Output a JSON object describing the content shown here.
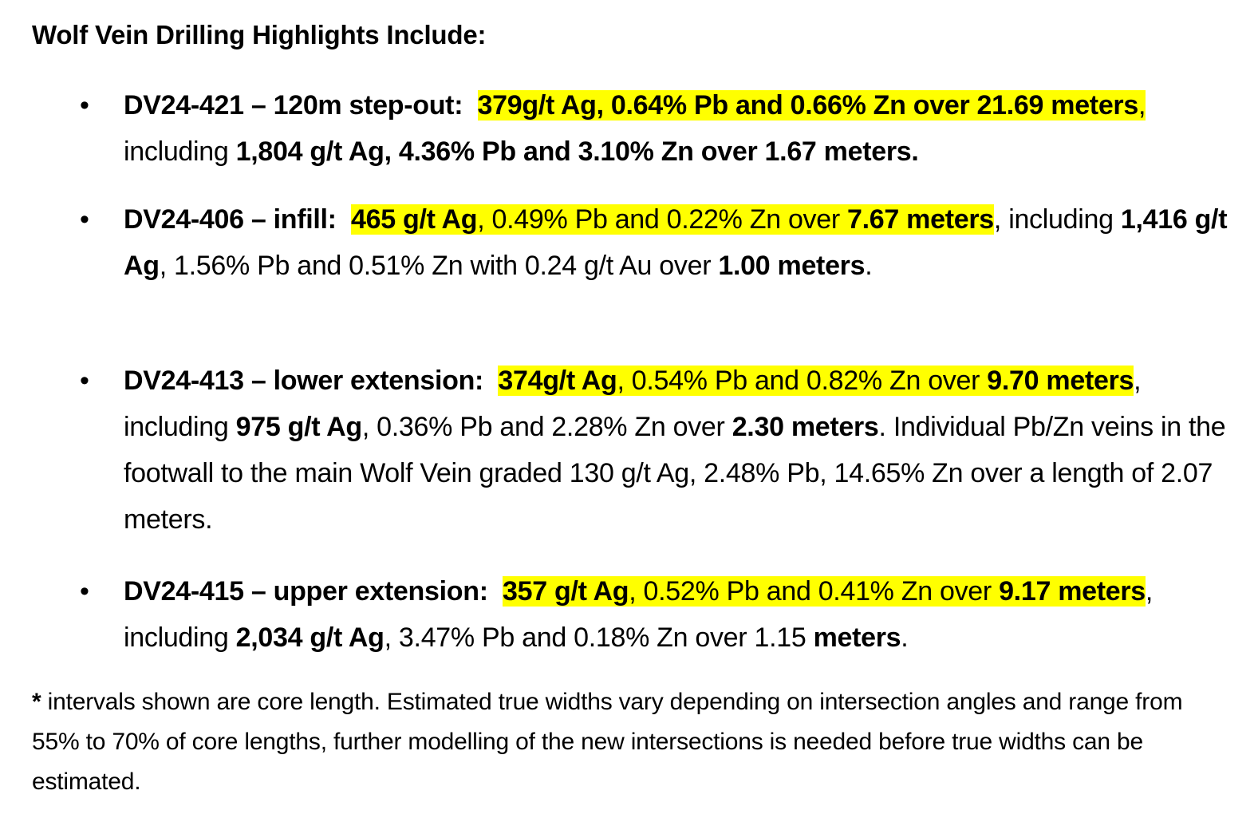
{
  "heading": "Wolf Vein Drilling Highlights Include:",
  "bullet_glyph": "•",
  "items": [
    {
      "label": "DV24-421 – 120m step-out:",
      "sep": "  ",
      "hl1": "379g/t Ag, 0.64% Pb and 0.66% Zn over 21.69 meters",
      "comma1": ",",
      "incl": " including ",
      "incl_value": "1,804 g/t Ag, 4.36% Pb and 3.10% Zn over 1.67 meters."
    },
    {
      "label": "DV24-406 – infill:",
      "sep": "  ",
      "hl_bold1": "465 g/t Ag",
      "hl_plain": ", 0.49% Pb and 0.22% Zn over ",
      "hl_bold2": "7.67 meters",
      "after_hl": ",",
      "incl": " including ",
      "incl_bold": "1,416 g/t Ag",
      "incl_plain": ", 1.56% Pb and 0.51% Zn with 0.24 g/t Au over ",
      "incl_bold2": "1.00 meters",
      "end": "."
    },
    {
      "label": "DV24-413 – lower extension:",
      "sep": "  ",
      "hl_bold1": "374g/t Ag",
      "hl_plain": ", 0.54% Pb and 0.82% Zn over ",
      "hl_bold2": "9.70 meters",
      "after_hl": ",",
      "incl": " including ",
      "incl_bold": "975 g/t Ag",
      "incl_plain": ", 0.36% Pb and 2.28% Zn over ",
      "incl_bold2": "2.30 meters",
      "end": ".",
      "extra": " Individual Pb/Zn veins in the footwall to the main Wolf Vein graded 130 g/t Ag, 2.48% Pb, 14.65% Zn over a length of 2.07 meters."
    },
    {
      "label": "DV24-415 – upper extension:",
      "sep": "  ",
      "hl_bold1": "357 g/t Ag",
      "hl_plain": ", 0.52% Pb and 0.41% Zn over ",
      "hl_bold2": "9.17 meters",
      "after_hl": ",",
      "incl": " including ",
      "incl_bold": "2,034 g/t Ag",
      "incl_plain": ", 3.47% Pb and 0.18% Zn over 1.15 ",
      "incl_bold2": "meters",
      "end": "."
    }
  ],
  "footnote": {
    "star": "*",
    "text": " intervals shown are core length. Estimated true widths vary depending on intersection angles and range from 55% to 70% of core lengths, further modelling of the new intersections is needed before true widths can be estimated."
  },
  "colors": {
    "highlight": "#ffff00",
    "text": "#000000",
    "background": "#ffffff"
  }
}
